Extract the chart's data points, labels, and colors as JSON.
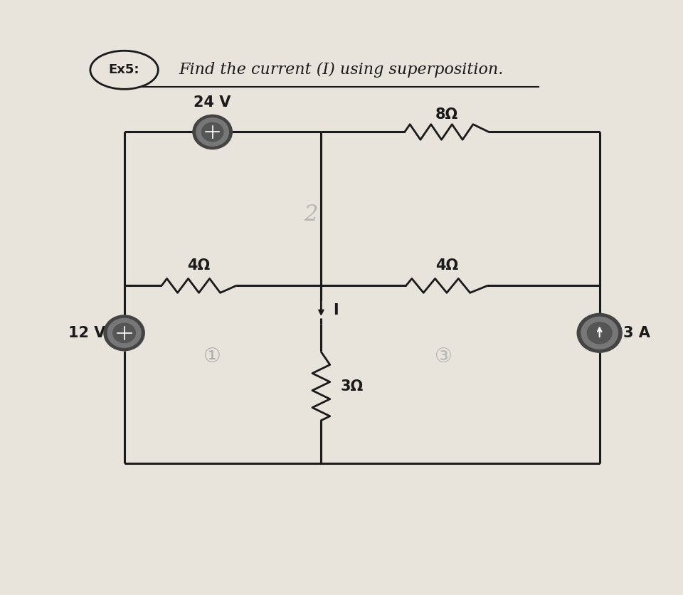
{
  "bg_color": "#e8e4dc",
  "circuit_color": "#1a1a1a",
  "label_24V": "24 V",
  "label_12V": "12 V",
  "label_3A": "3 A",
  "label_8ohm": "8Ω",
  "label_4ohm_left": "4Ω",
  "label_4ohm_right": "4Ω",
  "label_3ohm": "3Ω",
  "label_I": "I",
  "ex5_text": "Ex5:",
  "find_text": "Find the current (I) using superposition.",
  "source_outer": "#555555",
  "source_mid": "#888888",
  "source_inner": "#666666",
  "lw_main": 2.2,
  "resistor_lw": 2.0,
  "fs_label": 15,
  "fs_title": 16
}
